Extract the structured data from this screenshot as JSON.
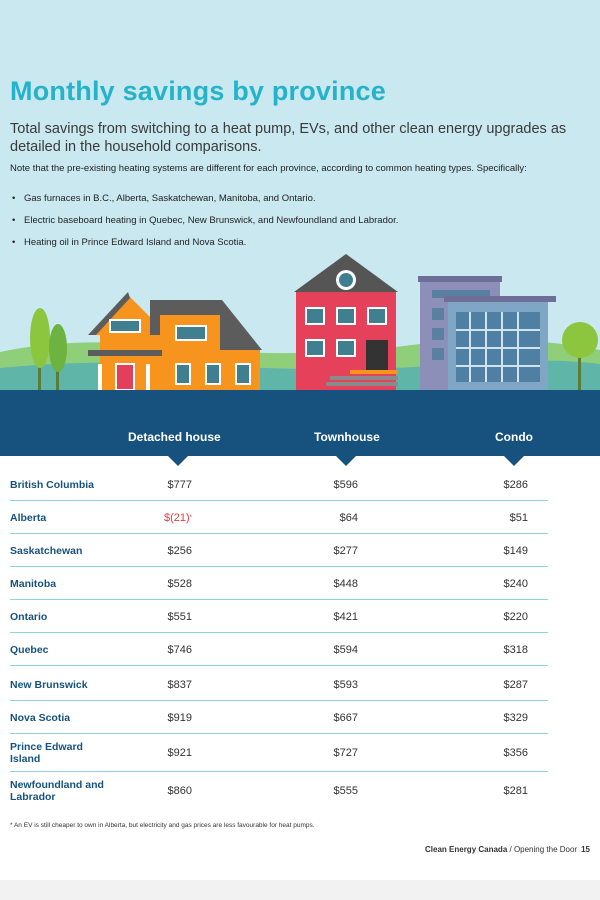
{
  "title": "Monthly savings by province",
  "subtitle": "Total savings from switching to a heat pump, EVs, and other clean energy upgrades as detailed in the household comparisons.",
  "note": "Note that the pre-existing heating systems are different for each province, according to common heating types. Specifically:",
  "bullets": [
    "Gas furnaces in B.C., Alberta, Saskatchewan, Manitoba, and Ontario.",
    "Electric baseboard heating in Quebec, New Brunswick, and Newfoundland and Labrador.",
    "Heating oil in Prince Edward Island and Nova Scotia."
  ],
  "columns": [
    "Detached house",
    "Townhouse",
    "Condo"
  ],
  "rows": [
    {
      "province": "British Columbia",
      "detached": "$777",
      "townhouse": "$596",
      "condo": "$286"
    },
    {
      "province": "Alberta",
      "detached": "$(21)",
      "detached_marker": "*",
      "townhouse": "$64",
      "condo": "$51"
    },
    {
      "province": "Saskatchewan",
      "detached": "$256",
      "townhouse": "$277",
      "condo": "$149"
    },
    {
      "province": "Manitoba",
      "detached": "$528",
      "townhouse": "$448",
      "condo": "$240"
    },
    {
      "province": "Ontario",
      "detached": "$551",
      "townhouse": "$421",
      "condo": "$220"
    },
    {
      "province": "Quebec",
      "detached": "$746",
      "townhouse": "$594",
      "condo": "$318"
    },
    {
      "province": "New Brunswick",
      "detached": "$837",
      "townhouse": "$593",
      "condo": "$287"
    },
    {
      "province": "Nova Scotia",
      "detached": "$919",
      "townhouse": "$667",
      "condo": "$329"
    },
    {
      "province": "Prince Edward Island",
      "detached": "$921",
      "townhouse": "$727",
      "condo": "$356"
    },
    {
      "province": "Newfoundland and Labrador",
      "detached": "$860",
      "townhouse": "$555",
      "condo": "$281"
    }
  ],
  "footnote": "* An EV is still cheaper to own in Alberta, but electricity and gas prices are less favourable for heat pumps.",
  "footer": {
    "org": "Clean Energy Canada",
    "separator": " / ",
    "publication": "Opening the Door",
    "page_number": "15"
  },
  "colors": {
    "title": "#25b3c9",
    "band": "#16527d",
    "province_text": "#16527d",
    "negative": "#e0403a",
    "row_rule": "#8fd3df",
    "sky": "#c9e8f0"
  },
  "icons": [
    "tree-icon",
    "detached-house-icon",
    "townhouse-icon",
    "condo-building-icon"
  ]
}
